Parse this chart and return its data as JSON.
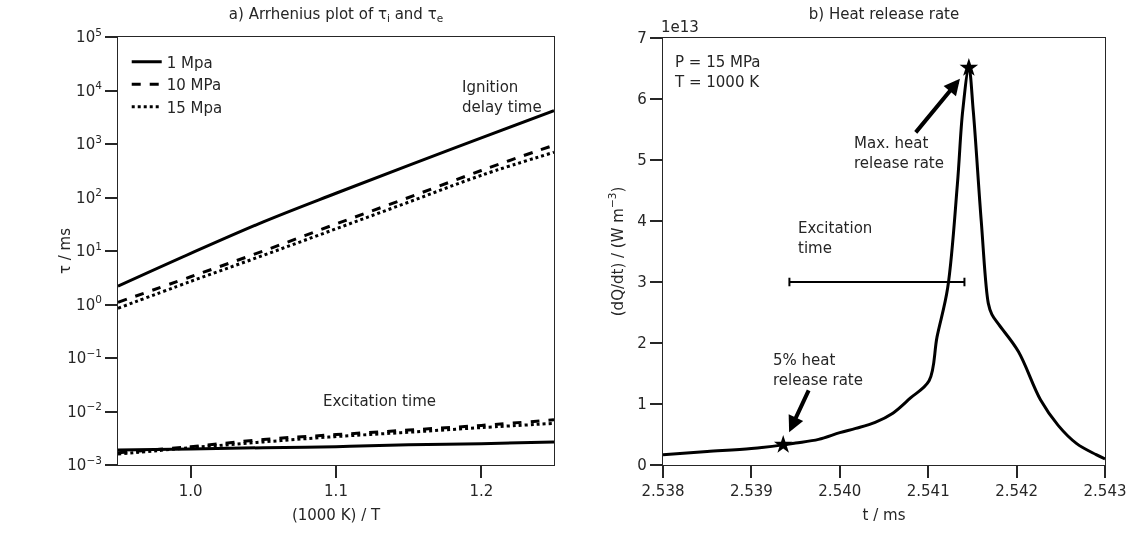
{
  "chart_data": [
    {
      "type": "line",
      "title": "a) Arrhenius plot of τ$_{i}$ and τ$_{e}$",
      "xlabel": "(1000 K) / T",
      "ylabel": "τ / ms",
      "log": "y",
      "grid": false,
      "legend": "top left",
      "xlim": [
        0.95,
        1.25
      ],
      "xticks": [
        {
          "value": 1,
          "label": "1.0"
        },
        1.1,
        1.2
      ],
      "ylim": [
        0.001,
        100000
      ],
      "yticks": [
        {
          "value": 0.001,
          "label": "10$^{−3}$"
        },
        {
          "value": 0.01,
          "label": "10$^{−2}$"
        },
        {
          "value": 0.1,
          "label": "10$^{−1}$"
        },
        {
          "value": 1,
          "label": "10$^{0}$"
        },
        {
          "value": 10,
          "label": "10$^{1}$"
        },
        {
          "value": 100,
          "label": "10$^{2}$"
        },
        {
          "value": 1000,
          "label": "10$^{3}$"
        },
        {
          "value": 10000,
          "label": "10$^{4}$"
        },
        {
          "value": 100000,
          "label": "10$^{5}$"
        }
      ],
      "annotations": [
        "Ignition\ndelay time",
        "Excitation time"
      ],
      "series": [
        {
          "name": "1 Mpa",
          "color": "#000000",
          "line_style": "solid",
          "x": [
            0.95,
            1.0,
            1.05,
            1.1,
            1.15,
            1.2,
            1.25
          ],
          "values": [
            2.2,
            9,
            35,
            120,
            400,
            1300,
            4200
          ]
        },
        {
          "name": "10 MPa",
          "color": "#000000",
          "line_style": "dashed",
          "x": [
            0.95,
            1.0,
            1.05,
            1.1,
            1.15,
            1.2,
            1.25
          ],
          "values": [
            1.1,
            3.3,
            10,
            32,
            100,
            320,
            950
          ]
        },
        {
          "name": "15 Mpa",
          "color": "#000000",
          "line_style": "dotted",
          "x": [
            0.95,
            1.0,
            1.05,
            1.1,
            1.15,
            1.2,
            1.25
          ],
          "values": [
            0.85,
            2.7,
            8.3,
            26,
            82,
            260,
            700
          ]
        },
        {
          "color": "#000000",
          "line_style": "solid",
          "x": [
            0.95,
            1.0,
            1.05,
            1.1,
            1.15,
            1.2,
            1.25
          ],
          "values": [
            0.0019,
            0.002,
            0.0021,
            0.0022,
            0.0024,
            0.0025,
            0.0027
          ]
        },
        {
          "color": "#000000",
          "line_style": "dashed",
          "x": [
            0.95,
            1.0,
            1.05,
            1.1,
            1.15,
            1.2,
            1.25
          ],
          "values": [
            0.0017,
            0.0022,
            0.003,
            0.0037,
            0.0045,
            0.0055,
            0.007
          ]
        },
        {
          "color": "#000000",
          "line_style": "dotted",
          "x": [
            0.95,
            1.0,
            1.05,
            1.1,
            1.15,
            1.2,
            1.25
          ],
          "values": [
            0.0016,
            0.0021,
            0.0027,
            0.0034,
            0.0041,
            0.005,
            0.006
          ]
        }
      ]
    },
    {
      "type": "line",
      "title": "b) Heat release rate",
      "xlabel": "t / ms",
      "ylabel": "(dQ/dt) / (W m$^{−3}$)",
      "grid": false,
      "legend": false,
      "xlim": [
        2.538,
        2.543
      ],
      "xticks": [
        2.538,
        2.539,
        {
          "value": 2.54,
          "label": "2.540"
        },
        2.541,
        2.542,
        2.543
      ],
      "ylim": [
        0,
        7
      ],
      "yticks": [
        0,
        1,
        2,
        3,
        4,
        5,
        6,
        7
      ],
      "annotations": [
        "1e13",
        "P = 15 MPa\nT = 1000 K",
        "Excitation\ntime",
        {
          "text": "Max. heat\nrelease rate",
          "x": 2.54146,
          "y": 6.51
        },
        {
          "text": "5% heat\nrelease rate",
          "x": 2.53936,
          "y": 0.33
        }
      ],
      "series": [
        {
          "color": "#000000",
          "line_style": "solid",
          "x": [
            2.538,
            2.5385,
            2.539,
            2.53936,
            2.5395,
            2.53976,
            2.54,
            2.54018,
            2.5404,
            2.5406,
            2.5408,
            2.54101,
            2.5411,
            2.54122,
            2.54133,
            2.54139,
            2.54146,
            2.54151,
            2.5416,
            2.54168,
            2.54172,
            2.5418,
            2.54202,
            2.54227,
            2.54247,
            2.54268,
            2.5429,
            2.543
          ],
          "values": [
            0.17,
            0.22,
            0.27,
            0.33,
            0.36,
            0.42,
            0.53,
            0.6,
            0.7,
            0.85,
            1.1,
            1.38,
            2.1,
            2.9,
            4.6,
            5.8,
            6.51,
            5.8,
            4.0,
            2.65,
            2.47,
            2.3,
            1.86,
            1.07,
            0.65,
            0.35,
            0.17,
            0.1
          ]
        },
        {
          "type": "scatter",
          "color": "#000000",
          "marker": "star",
          "x": [
            2.53936,
            2.54146
          ],
          "values": [
            0.33,
            6.51
          ]
        },
        {
          "type": "line",
          "color": "#000000",
          "line_style": "solid",
          "x": [
            2.53943,
            2.54141
          ],
          "values": [
            3,
            3
          ],
          "errors": [
            0.07,
            0.07
          ]
        }
      ]
    }
  ]
}
